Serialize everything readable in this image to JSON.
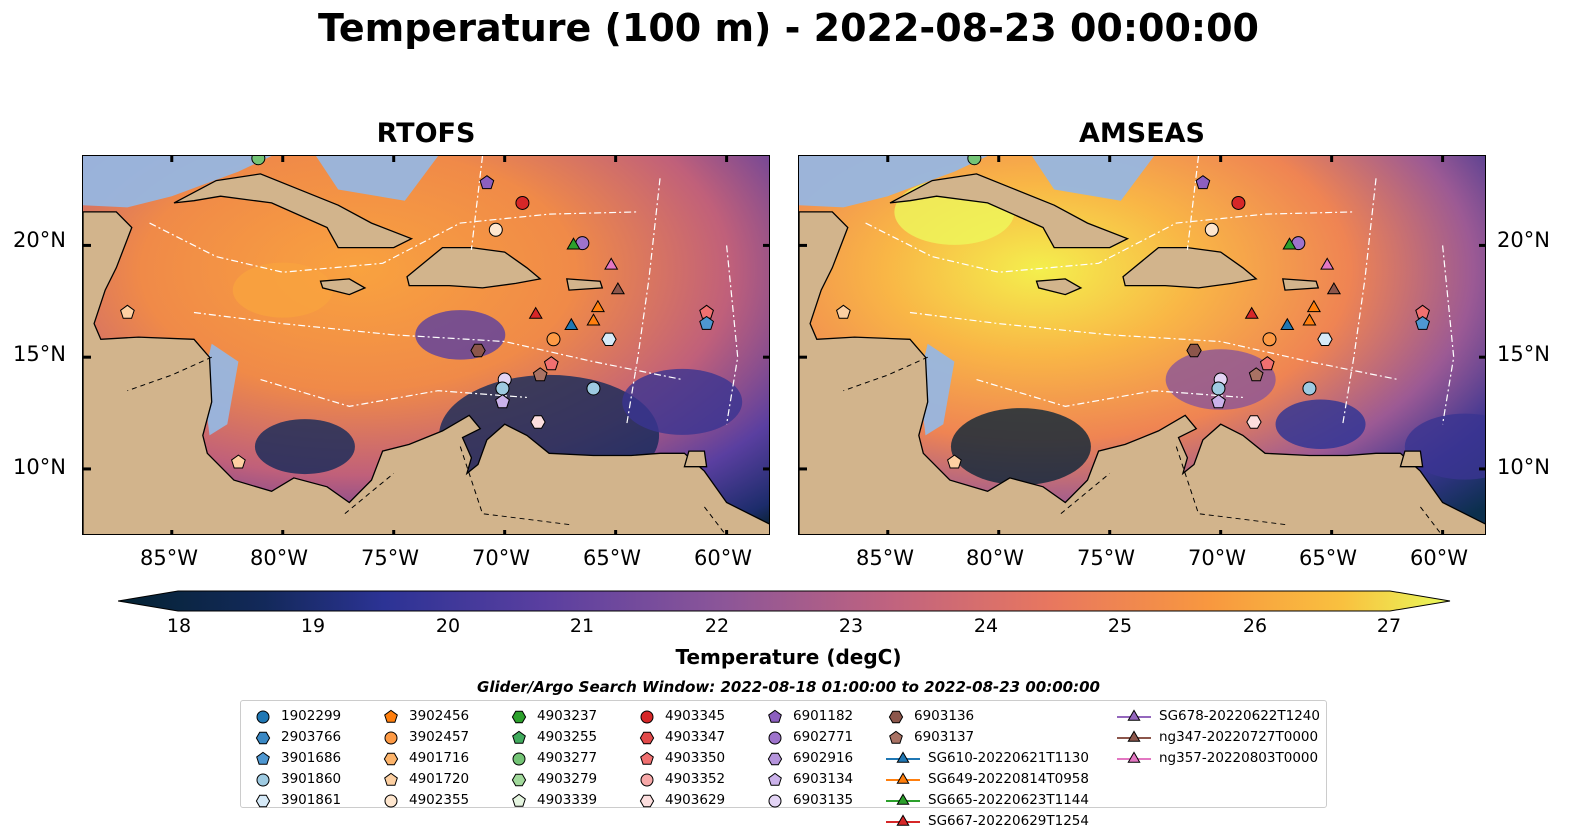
{
  "title": "Temperature (100 m) - 2022-08-23 00:00:00",
  "panels": [
    {
      "title": "RTOFS"
    },
    {
      "title": "AMSEAS"
    }
  ],
  "axes": {
    "lat_labels": [
      "20°N",
      "15°N",
      "10°N"
    ],
    "lon_labels": [
      "85°W",
      "80°W",
      "75°W",
      "70°W",
      "65°W",
      "60°W"
    ]
  },
  "colorbar": {
    "label": "Temperature (degC)",
    "ticks": [
      "18",
      "19",
      "20",
      "21",
      "22",
      "23",
      "24",
      "25",
      "26",
      "27"
    ],
    "min": 18,
    "max": 27
  },
  "legend": {
    "title": "Glider/Argo Search Window: 2022-08-18 01:00:00 to 2022-08-23 00:00:00",
    "entries": [
      {
        "label": "1902299",
        "marker": "circle",
        "color": "#1f77b4"
      },
      {
        "label": "2903766",
        "marker": "hexagon",
        "color": "#3a88c4"
      },
      {
        "label": "3901686",
        "marker": "pentagon",
        "color": "#4e97d1"
      },
      {
        "label": "3901860",
        "marker": "circle",
        "color": "#9ecae1"
      },
      {
        "label": "3901861",
        "marker": "hexagon",
        "color": "#d6eaf8"
      },
      {
        "label": "3902456",
        "marker": "pentagon",
        "color": "#ff7f0e"
      },
      {
        "label": "3902457",
        "marker": "circle",
        "color": "#fd9a45"
      },
      {
        "label": "4901716",
        "marker": "hexagon",
        "color": "#fdb46b"
      },
      {
        "label": "4901720",
        "marker": "pentagon",
        "color": "#fdd0a2"
      },
      {
        "label": "4902355",
        "marker": "circle",
        "color": "#fee6ce"
      },
      {
        "label": "4903237",
        "marker": "hexagon",
        "color": "#2ca02c"
      },
      {
        "label": "4903255",
        "marker": "pentagon",
        "color": "#41ab5d"
      },
      {
        "label": "4903277",
        "marker": "circle",
        "color": "#74c476"
      },
      {
        "label": "4903279",
        "marker": "hexagon",
        "color": "#a1d99b"
      },
      {
        "label": "4903339",
        "marker": "pentagon",
        "color": "#e5f5e0"
      },
      {
        "label": "4903345",
        "marker": "circle",
        "color": "#d62728"
      },
      {
        "label": "4903347",
        "marker": "hexagon",
        "color": "#e34a4a"
      },
      {
        "label": "4903350",
        "marker": "pentagon",
        "color": "#f07070"
      },
      {
        "label": "4903352",
        "marker": "circle",
        "color": "#f7a8a8"
      },
      {
        "label": "4903629",
        "marker": "hexagon",
        "color": "#fcdede"
      },
      {
        "label": "6901182",
        "marker": "pentagon",
        "color": "#8c5fbf"
      },
      {
        "label": "6902771",
        "marker": "circle",
        "color": "#9e73cc"
      },
      {
        "label": "6902916",
        "marker": "hexagon",
        "color": "#b594dc"
      },
      {
        "label": "6903134",
        "marker": "pentagon",
        "color": "#cbb2ea"
      },
      {
        "label": "6903135",
        "marker": "circle",
        "color": "#e3d4f5"
      },
      {
        "label": "6903136",
        "marker": "hexagon",
        "color": "#8c564b"
      },
      {
        "label": "6903137",
        "marker": "pentagon",
        "color": "#a97264"
      },
      {
        "label": "SG610-20220621T1130",
        "marker": "triangle",
        "color": "#1f77b4",
        "line": true
      },
      {
        "label": "SG649-20220814T0958",
        "marker": "triangle",
        "color": "#ff7f0e",
        "line": true
      },
      {
        "label": "SG665-20220623T1144",
        "marker": "triangle",
        "color": "#2ca02c",
        "line": true
      },
      {
        "label": "SG667-20220629T1254",
        "marker": "triangle",
        "color": "#d62728",
        "line": true
      },
      {
        "label": "SG678-20220622T1240",
        "marker": "triangle",
        "color": "#9467bd",
        "line": true
      },
      {
        "label": "ng347-20220727T0000",
        "marker": "triangle",
        "color": "#8c564b",
        "line": true
      },
      {
        "label": "ng357-20220803T0000",
        "marker": "triangle",
        "color": "#e377c2",
        "line": true
      }
    ]
  },
  "map_points": [
    {
      "lon": -81.1,
      "lat": 23.9,
      "marker": "circle",
      "color": "#74c476"
    },
    {
      "lon": -70.8,
      "lat": 22.8,
      "marker": "pentagon",
      "color": "#8c5fbf"
    },
    {
      "lon": -69.2,
      "lat": 21.9,
      "marker": "circle",
      "color": "#d62728"
    },
    {
      "lon": -70.4,
      "lat": 20.7,
      "marker": "circle",
      "color": "#fee6ce"
    },
    {
      "lon": -66.5,
      "lat": 20.1,
      "marker": "circle",
      "color": "#9e73cc"
    },
    {
      "lon": -66.9,
      "lat": 20.0,
      "marker": "triangle",
      "color": "#2ca02c"
    },
    {
      "lon": -65.2,
      "lat": 19.1,
      "marker": "triangle",
      "color": "#e377c2"
    },
    {
      "lon": -64.9,
      "lat": 18.0,
      "marker": "triangle",
      "color": "#8c564b"
    },
    {
      "lon": -65.8,
      "lat": 17.2,
      "marker": "triangle",
      "color": "#ff7f0e"
    },
    {
      "lon": -66.0,
      "lat": 16.6,
      "marker": "triangle",
      "color": "#ff7f0e"
    },
    {
      "lon": -68.6,
      "lat": 16.9,
      "marker": "triangle",
      "color": "#d62728"
    },
    {
      "lon": -67.0,
      "lat": 16.4,
      "marker": "triangle",
      "color": "#1f77b4"
    },
    {
      "lon": -60.9,
      "lat": 17.0,
      "marker": "pentagon",
      "color": "#f07070"
    },
    {
      "lon": -60.9,
      "lat": 16.5,
      "marker": "pentagon",
      "color": "#4e97d1"
    },
    {
      "lon": -65.3,
      "lat": 15.8,
      "marker": "hexagon",
      "color": "#d6eaf8"
    },
    {
      "lon": -67.8,
      "lat": 15.8,
      "marker": "circle",
      "color": "#fd9a45"
    },
    {
      "lon": -71.2,
      "lat": 15.3,
      "marker": "hexagon",
      "color": "#8c564b"
    },
    {
      "lon": -67.9,
      "lat": 14.7,
      "marker": "pentagon",
      "color": "#f07070"
    },
    {
      "lon": -68.4,
      "lat": 14.2,
      "marker": "pentagon",
      "color": "#a97264"
    },
    {
      "lon": -70.0,
      "lat": 14.0,
      "marker": "circle",
      "color": "#e3d4f5"
    },
    {
      "lon": -70.1,
      "lat": 13.6,
      "marker": "circle",
      "color": "#9ecae1"
    },
    {
      "lon": -66.0,
      "lat": 13.6,
      "marker": "circle",
      "color": "#9ecae1"
    },
    {
      "lon": -70.1,
      "lat": 13.0,
      "marker": "pentagon",
      "color": "#cbb2ea"
    },
    {
      "lon": -68.5,
      "lat": 12.1,
      "marker": "hexagon",
      "color": "#fcdede"
    },
    {
      "lon": -87.0,
      "lat": 17.0,
      "marker": "pentagon",
      "color": "#fdd0a2"
    },
    {
      "lon": -82.0,
      "lat": 10.3,
      "marker": "pentagon",
      "color": "#fdd0a2"
    }
  ]
}
